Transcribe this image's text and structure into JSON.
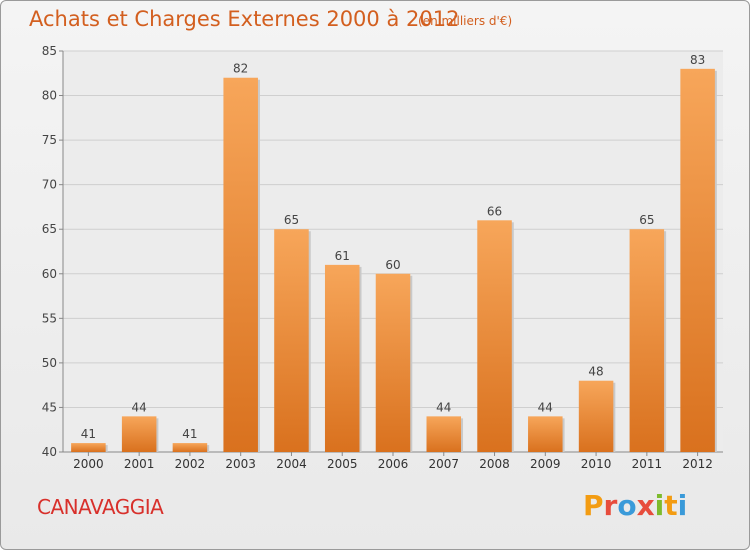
{
  "header": {
    "title": "Achats et Charges Externes 2000 à 2012",
    "subtitle": "(en milliers d'€)"
  },
  "footer": {
    "location": "CANAVAGGIA",
    "logo_letters": [
      "P",
      "r",
      "o",
      "x",
      "i",
      "t",
      "i"
    ],
    "logo_colors": [
      "#f39c12",
      "#e74c3c",
      "#3a9ad9",
      "#e74c3c",
      "#7dbb2d",
      "#f39c12",
      "#3a9ad9"
    ]
  },
  "colors": {
    "bar_top": "#f7a65a",
    "bar_bottom": "#d9711e",
    "title": "#d35f1f",
    "grid": "#cfcfcf"
  },
  "chart_data": {
    "type": "bar",
    "title": "Achats et Charges Externes 2000 à 2012",
    "subtitle": "(en milliers d'€)",
    "categories": [
      "2000",
      "2001",
      "2002",
      "2003",
      "2004",
      "2005",
      "2006",
      "2007",
      "2008",
      "2009",
      "2010",
      "2011",
      "2012"
    ],
    "values": [
      41,
      44,
      41,
      82,
      65,
      61,
      60,
      44,
      66,
      44,
      48,
      65,
      83
    ],
    "ylim": [
      40,
      85
    ],
    "yticks": [
      40,
      45,
      50,
      55,
      60,
      65,
      70,
      75,
      80,
      85
    ],
    "grid": true,
    "legend": "none"
  }
}
